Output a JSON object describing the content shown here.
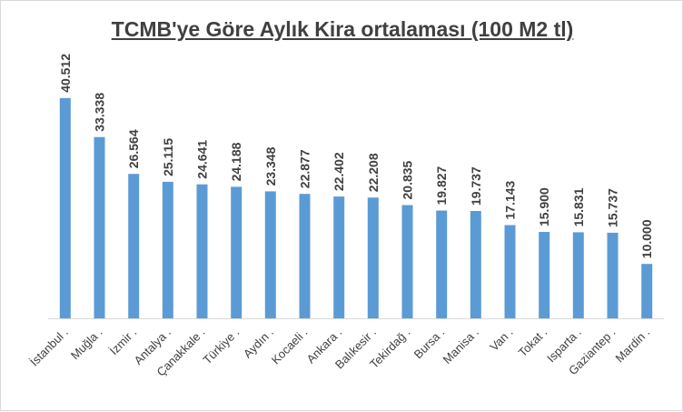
{
  "chart_data": {
    "type": "bar",
    "title": "TCMB'ye Göre Aylık Kira ortalaması (100 M2 tl)",
    "xlabel": "",
    "ylabel": "",
    "categories": [
      "İstanbul .",
      "Muğla .",
      "İzmir .",
      "Antalya .",
      "Çanakkale .",
      "Türkiye .",
      "Aydın .",
      "Kocaeli .",
      "Ankara .",
      "Balıkesir .",
      "Tekirdağ .",
      "Bursa .",
      "Manisa .",
      "Van .",
      "Tokat .",
      "Isparta .",
      "Gaziantep .",
      "Mardin ."
    ],
    "values": [
      40.512,
      33.338,
      26.564,
      25.115,
      24.641,
      24.188,
      23.348,
      22.877,
      22.402,
      22.208,
      20.835,
      19.827,
      19.737,
      17.143,
      15.9,
      15.831,
      15.737,
      10.0
    ],
    "value_labels": [
      "40.512",
      "33.338",
      "26.564",
      "25.115",
      "24.641",
      "24.188",
      "23.348",
      "22.877",
      "22.402",
      "22.208",
      "20.835",
      "19.827",
      "19.737",
      "17.143",
      "15.900",
      "15.831",
      "15.737",
      "10.000"
    ],
    "ylim": [
      0,
      45
    ],
    "grid": false,
    "legend": "none",
    "bar_color": "#5b9bd5",
    "axis_color": "#d9d9d9",
    "text_color": "#404040"
  }
}
